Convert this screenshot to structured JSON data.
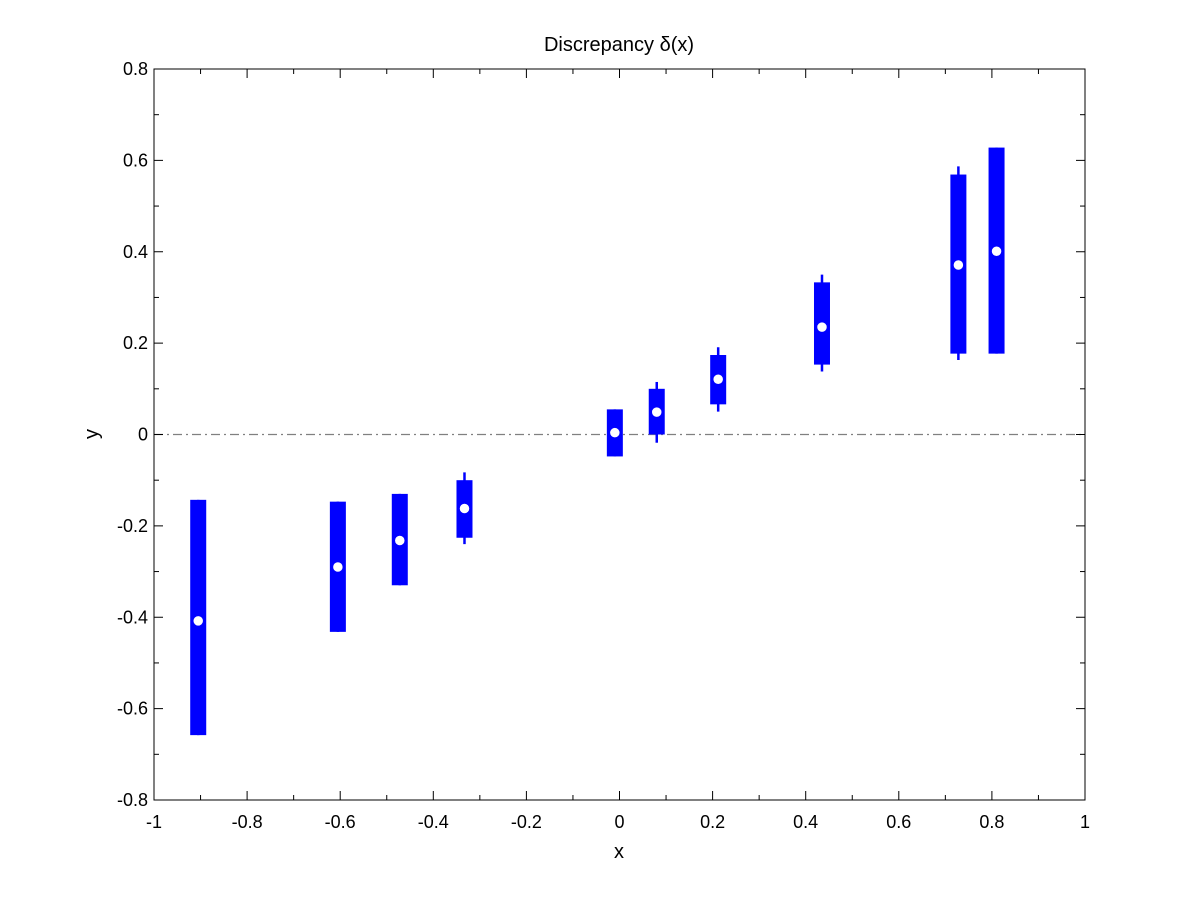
{
  "chart_data": {
    "type": "scatter",
    "title": "Discrepancy δ(x)",
    "xlabel": "x",
    "ylabel": "y",
    "xlim": [
      -1,
      1
    ],
    "ylim": [
      -0.8,
      0.8
    ],
    "xticks": [
      "-1",
      "-0.8",
      "-0.6",
      "-0.4",
      "-0.2",
      "0",
      "0.2",
      "0.4",
      "0.6",
      "0.8",
      "1"
    ],
    "yticks": [
      "-0.8",
      "-0.6",
      "-0.4",
      "-0.2",
      "0",
      "0.2",
      "0.4",
      "0.6",
      "0.8"
    ],
    "grid": false,
    "reference_line": {
      "y": 0,
      "style": "dash-dot",
      "color": "#808080"
    },
    "colors": {
      "interval": "#0000ff",
      "marker_fill": "#ffffff",
      "marker_edge": "#0000ff"
    },
    "points": [
      {
        "x": -0.905,
        "y": -0.408,
        "box": [
          -0.658,
          -0.143
        ],
        "whisker": [
          -0.658,
          -0.143
        ]
      },
      {
        "x": -0.605,
        "y": -0.29,
        "box": [
          -0.432,
          -0.147
        ],
        "whisker": [
          -0.432,
          -0.147
        ]
      },
      {
        "x": -0.472,
        "y": -0.232,
        "box": [
          -0.33,
          -0.13
        ],
        "whisker": [
          -0.33,
          -0.13
        ]
      },
      {
        "x": -0.333,
        "y": -0.162,
        "box": [
          -0.226,
          -0.1
        ],
        "whisker": [
          -0.24,
          -0.083
        ]
      },
      {
        "x": -0.01,
        "y": 0.004,
        "box": [
          -0.048,
          0.055
        ],
        "whisker": [
          -0.048,
          0.055
        ]
      },
      {
        "x": 0.08,
        "y": 0.049,
        "box": [
          0.0,
          0.1
        ],
        "whisker": [
          -0.018,
          0.115
        ]
      },
      {
        "x": 0.212,
        "y": 0.121,
        "box": [
          0.066,
          0.174
        ],
        "whisker": [
          0.05,
          0.191
        ]
      },
      {
        "x": 0.435,
        "y": 0.235,
        "box": [
          0.153,
          0.333
        ],
        "whisker": [
          0.138,
          0.35
        ]
      },
      {
        "x": 0.728,
        "y": 0.371,
        "box": [
          0.177,
          0.569
        ],
        "whisker": [
          0.163,
          0.587
        ]
      },
      {
        "x": 0.81,
        "y": 0.401,
        "box": [
          0.177,
          0.628
        ],
        "whisker": [
          0.177,
          0.628
        ]
      }
    ]
  }
}
